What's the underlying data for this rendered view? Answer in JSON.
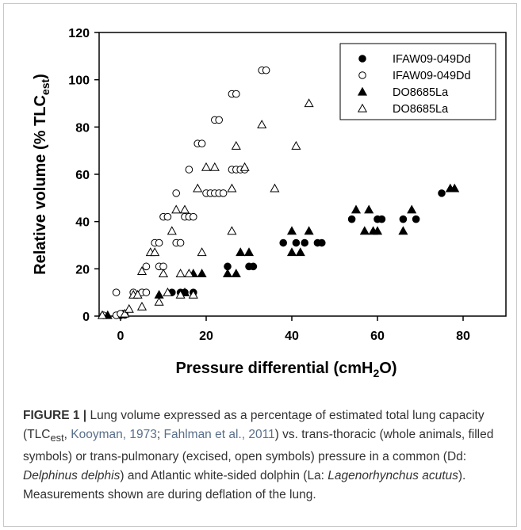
{
  "chart_data": {
    "type": "scatter",
    "xlabel": "Pressure differential (cmH",
    "xlabel_sub": "2",
    "xlabel_end": "O)",
    "ylabel": "Relative volume (% TLC",
    "ylabel_sub": "est",
    "ylabel_end": ")",
    "xlim": [
      -5,
      90
    ],
    "ylim": [
      0,
      120
    ],
    "xticks": [
      "0",
      "20",
      "40",
      "60",
      "80"
    ],
    "yticks": [
      "0",
      "20",
      "40",
      "60",
      "80",
      "100",
      "120"
    ],
    "legend_position": "top-right",
    "series": [
      {
        "name": "IFAW09-049Dd",
        "marker": "circle",
        "filled": true,
        "points": [
          [
            0,
            0
          ],
          [
            0.5,
            1
          ],
          [
            1,
            0.5
          ],
          [
            12,
            10
          ],
          [
            14,
            10
          ],
          [
            15,
            10
          ],
          [
            17,
            10
          ],
          [
            25,
            21
          ],
          [
            30,
            21
          ],
          [
            31,
            21
          ],
          [
            38,
            31
          ],
          [
            41,
            31
          ],
          [
            43,
            31
          ],
          [
            46,
            31
          ],
          [
            47,
            31
          ],
          [
            54,
            41
          ],
          [
            60,
            41
          ],
          [
            61,
            41
          ],
          [
            66,
            41
          ],
          [
            69,
            41
          ],
          [
            75,
            52
          ]
        ]
      },
      {
        "name": "IFAW09-049Dd",
        "marker": "circle",
        "filled": false,
        "points": [
          [
            -4,
            0
          ],
          [
            -1,
            0
          ],
          [
            0,
            1
          ],
          [
            -1,
            10
          ],
          [
            3,
            10
          ],
          [
            5,
            10
          ],
          [
            6,
            10
          ],
          [
            6,
            21
          ],
          [
            9,
            21
          ],
          [
            10,
            21
          ],
          [
            8,
            31
          ],
          [
            9,
            31
          ],
          [
            10,
            42
          ],
          [
            11,
            42
          ],
          [
            13,
            31
          ],
          [
            14,
            31
          ],
          [
            13,
            52
          ],
          [
            15,
            42
          ],
          [
            16,
            42
          ],
          [
            17,
            42
          ],
          [
            16,
            62
          ],
          [
            18,
            73
          ],
          [
            19,
            73
          ],
          [
            20,
            52
          ],
          [
            21,
            52
          ],
          [
            22,
            52
          ],
          [
            22,
            83
          ],
          [
            23,
            83
          ],
          [
            23,
            52
          ],
          [
            24,
            52
          ],
          [
            26,
            62
          ],
          [
            26,
            94
          ],
          [
            27,
            94
          ],
          [
            27,
            62
          ],
          [
            28,
            62
          ],
          [
            29,
            62
          ],
          [
            33,
            104
          ],
          [
            34,
            104
          ]
        ]
      },
      {
        "name": "DO8685La",
        "marker": "triangle",
        "filled": true,
        "points": [
          [
            -3,
            0
          ],
          [
            9,
            9
          ],
          [
            15,
            10
          ],
          [
            17,
            18
          ],
          [
            19,
            18
          ],
          [
            25,
            18
          ],
          [
            27,
            18
          ],
          [
            28,
            27
          ],
          [
            30,
            27
          ],
          [
            40,
            36
          ],
          [
            40,
            27
          ],
          [
            42,
            27
          ],
          [
            44,
            36
          ],
          [
            55,
            45
          ],
          [
            57,
            36
          ],
          [
            58,
            45
          ],
          [
            59,
            36
          ],
          [
            60,
            36
          ],
          [
            66,
            36
          ],
          [
            68,
            45
          ],
          [
            77,
            54
          ],
          [
            78,
            54
          ]
        ]
      },
      {
        "name": "DO8685La",
        "marker": "triangle",
        "filled": false,
        "points": [
          [
            -5,
            0
          ],
          [
            1,
            1
          ],
          [
            2,
            3
          ],
          [
            3,
            9
          ],
          [
            4,
            9
          ],
          [
            5,
            4
          ],
          [
            5,
            19
          ],
          [
            7,
            27
          ],
          [
            8,
            27
          ],
          [
            9,
            6
          ],
          [
            10,
            18
          ],
          [
            11,
            10
          ],
          [
            12,
            36
          ],
          [
            13,
            45
          ],
          [
            14,
            9
          ],
          [
            14,
            18
          ],
          [
            15,
            45
          ],
          [
            16,
            18
          ],
          [
            17,
            9
          ],
          [
            18,
            54
          ],
          [
            19,
            27
          ],
          [
            20,
            63
          ],
          [
            22,
            63
          ],
          [
            26,
            36
          ],
          [
            26,
            54
          ],
          [
            27,
            72
          ],
          [
            29,
            63
          ],
          [
            33,
            81
          ],
          [
            36,
            54
          ],
          [
            41,
            72
          ],
          [
            44,
            90
          ]
        ]
      }
    ]
  },
  "caption": {
    "label": "FIGURE 1 |",
    "text_1": " Lung volume expressed as a percentage of estimated total lung capacity (TLC",
    "text_1_sub": "est",
    "text_1_end": ", ",
    "cite_1": "Kooyman, 1973",
    "sep": "; ",
    "cite_2": "Fahlman et al., 2011",
    "text_2": ") vs. trans-thoracic (whole animals, filled symbols) or trans-pulmonary (excised, open symbols) pressure in a common (Dd: ",
    "species_1": "Delphinus delphis",
    "text_3": ") and Atlantic white-sided dolphin (La: ",
    "species_2": "Lagenorhynchus acutus",
    "text_4": "). Measurements shown are during deflation of the lung."
  }
}
